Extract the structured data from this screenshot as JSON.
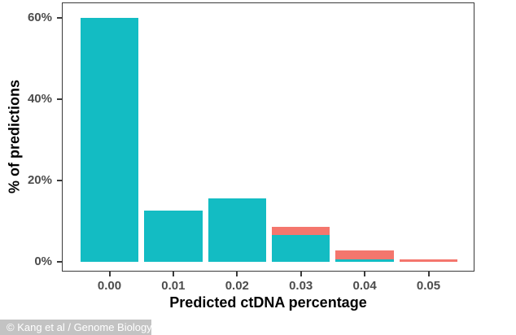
{
  "figure": {
    "x_axis_title": "Predicted ctDNA percentage",
    "y_axis_title": "% of predictions",
    "watermark": "© Kang et al / Genome Biology"
  },
  "chart_data": {
    "type": "bar",
    "stacked": true,
    "title": "",
    "xlabel": "Predicted ctDNA percentage",
    "ylabel": "% of predictions",
    "categories": [
      "0.00",
      "0.01",
      "0.02",
      "0.03",
      "0.04",
      "0.05"
    ],
    "series": [
      {
        "name": "teal",
        "color": "#13bcc3",
        "values": [
          60,
          12.6,
          15.6,
          6.5,
          0.6,
          0
        ]
      },
      {
        "name": "salmon",
        "color": "#f4766d",
        "values": [
          0,
          0,
          0,
          2.1,
          2.1,
          0.5
        ]
      }
    ],
    "y_ticks": [
      {
        "label": "0%",
        "value": 0
      },
      {
        "label": "20%",
        "value": 20
      },
      {
        "label": "40%",
        "value": 40
      },
      {
        "label": "60%",
        "value": 60
      }
    ],
    "ylim": [
      0,
      63
    ],
    "xlim_labels": [
      "0.00",
      "0.05"
    ],
    "grid": false,
    "legend": "none",
    "panel_border_color": "#3a3a3a",
    "axis_text_color": "#4d4d4d"
  }
}
